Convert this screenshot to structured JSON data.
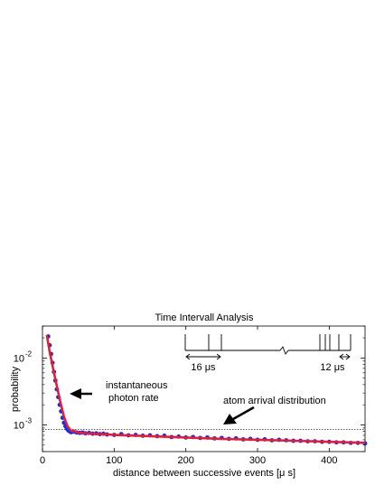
{
  "chart_data": {
    "type": "scatter",
    "title": "Time Intervall Analysis",
    "xlabel": "distance between successive events [μ s]",
    "ylabel": "probability",
    "xlim": [
      0,
      450
    ],
    "ylim": [
      0.0004,
      0.03
    ],
    "yscale": "log",
    "x_ticks": [
      0,
      100,
      200,
      300,
      400
    ],
    "y_ticks": [
      {
        "value": 0.01,
        "base": "10",
        "exp": "-2"
      },
      {
        "value": 0.001,
        "base": "10",
        "exp": "-3"
      }
    ],
    "reference_level": 0.00086,
    "grid": false,
    "marker_color": "#1f2be0",
    "fit_color": "#e0203a",
    "series": [
      {
        "x": [
          8,
          10,
          12,
          14,
          16,
          18,
          20,
          22,
          24,
          26,
          28,
          30,
          32,
          34,
          36,
          38,
          40,
          44,
          48,
          52,
          56,
          60,
          65,
          70,
          75,
          80,
          85,
          90,
          100,
          110,
          120,
          130,
          140,
          150,
          160,
          170,
          180,
          190,
          200,
          210,
          220,
          230,
          240,
          250,
          260,
          270,
          280,
          290,
          300,
          310,
          320,
          330,
          340,
          350,
          360,
          370,
          380,
          390,
          400,
          410,
          420,
          430,
          440,
          450
        ],
        "y": [
          0.021,
          0.0155,
          0.0115,
          0.0085,
          0.0062,
          0.0046,
          0.0034,
          0.0026,
          0.002,
          0.0016,
          0.00128,
          0.00108,
          0.00096,
          0.00088,
          0.00083,
          0.0008,
          0.00078,
          0.00079,
          0.00077,
          0.00076,
          0.00077,
          0.00075,
          0.00076,
          0.00074,
          0.00075,
          0.00073,
          0.00074,
          0.00072,
          0.00071,
          0.00073,
          0.0007,
          0.00071,
          0.00069,
          0.0007,
          0.00068,
          0.00069,
          0.00066,
          0.00067,
          0.00065,
          0.00066,
          0.00064,
          0.00065,
          0.00063,
          0.00064,
          0.00062,
          0.00063,
          0.00061,
          0.00062,
          0.0006,
          0.00061,
          0.00059,
          0.0006,
          0.00059,
          0.00058,
          0.00058,
          0.00057,
          0.00057,
          0.00056,
          0.00056,
          0.00055,
          0.00055,
          0.00054,
          0.00054,
          0.00053
        ]
      }
    ],
    "fit": {
      "x": [
        6,
        10,
        15,
        20,
        25,
        30,
        35,
        40,
        50,
        60,
        80,
        100,
        150,
        200,
        250,
        300,
        350,
        400,
        450
      ],
      "y": [
        0.022,
        0.0125,
        0.0068,
        0.0038,
        0.0022,
        0.00132,
        0.00095,
        0.00082,
        0.00077,
        0.00075,
        0.00073,
        0.00071,
        0.00068,
        0.00065,
        0.00062,
        0.0006,
        0.00058,
        0.00056,
        0.00054
      ]
    },
    "annotations": [
      {
        "text_lines": [
          "instantaneous",
          "photon rate"
        ],
        "at": [
          24,
          0.0029
        ]
      },
      {
        "text_lines": [
          "atom arrival distribution"
        ],
        "at": [
          240,
          0.00082
        ]
      }
    ],
    "inset": {
      "left_label": "16 μs",
      "right_label": "12 μs"
    }
  }
}
